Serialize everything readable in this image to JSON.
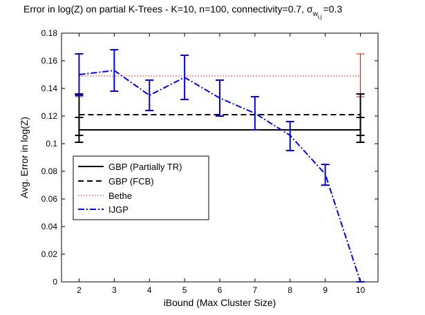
{
  "chart_data": {
    "type": "line",
    "title": "Error in log(Z) on partial K-Trees - K=10, n=100, connectivity=0.7, σ",
    "title_sub_w": "w",
    "title_sub_ij": "i,j",
    "title_tail": "=0.3",
    "xlabel": "iBound (Max Cluster Size)",
    "ylabel": "Avg. Error in log(Z)",
    "xlim": [
      1.5,
      10.5
    ],
    "ylim": [
      0,
      0.18
    ],
    "xticks": [
      2,
      3,
      4,
      5,
      6,
      7,
      8,
      9,
      10
    ],
    "yticks": [
      0,
      0.02,
      0.04,
      0.06,
      0.08,
      0.1,
      0.12,
      0.14,
      0.16,
      0.18
    ],
    "ytick_labels": [
      "0",
      "0.02",
      "0.04",
      "0.06",
      "0.08",
      "0.1",
      "0.12",
      "0.14",
      "0.16",
      "0.18"
    ],
    "grid": false,
    "legend_position": "lower-left",
    "series": [
      {
        "name": "GBP (Partially TR)",
        "style": "solid",
        "color": "#000000",
        "x": [
          2,
          10
        ],
        "y": [
          0.11,
          0.11
        ],
        "errorbars": [
          {
            "x": 2,
            "low": 0.101,
            "high": 0.119
          },
          {
            "x": 10,
            "low": 0.101,
            "high": 0.119
          }
        ]
      },
      {
        "name": "GBP (FCB)",
        "style": "dashed",
        "color": "#000000",
        "x": [
          2,
          10
        ],
        "y": [
          0.121,
          0.121
        ],
        "errorbars": [
          {
            "x": 2,
            "low": 0.106,
            "high": 0.136
          },
          {
            "x": 10,
            "low": 0.106,
            "high": 0.136
          }
        ]
      },
      {
        "name": "Bethe",
        "style": "dotted",
        "color": "#ff0000",
        "x": [
          2,
          10
        ],
        "y": [
          0.149,
          0.149
        ],
        "errorbars": [
          {
            "x": 2,
            "low": 0.134,
            "high": 0.165
          },
          {
            "x": 10,
            "low": 0.134,
            "high": 0.165
          }
        ]
      },
      {
        "name": "IJGP",
        "style": "dashdot",
        "color": "#0000ff",
        "x": [
          2,
          3,
          4,
          5,
          6,
          7,
          8,
          9,
          10
        ],
        "y": [
          0.15,
          0.153,
          0.135,
          0.148,
          0.133,
          0.122,
          0.106,
          0.078,
          0.0
        ],
        "errorbars": [
          {
            "x": 2,
            "low": 0.135,
            "high": 0.165
          },
          {
            "x": 3,
            "low": 0.138,
            "high": 0.168
          },
          {
            "x": 4,
            "low": 0.124,
            "high": 0.146
          },
          {
            "x": 5,
            "low": 0.132,
            "high": 0.164
          },
          {
            "x": 6,
            "low": 0.12,
            "high": 0.146
          },
          {
            "x": 7,
            "low": 0.11,
            "high": 0.134
          },
          {
            "x": 8,
            "low": 0.095,
            "high": 0.116
          },
          {
            "x": 9,
            "low": 0.07,
            "high": 0.085
          },
          {
            "x": 10,
            "low": 0.0,
            "high": 0.0
          }
        ]
      }
    ]
  }
}
